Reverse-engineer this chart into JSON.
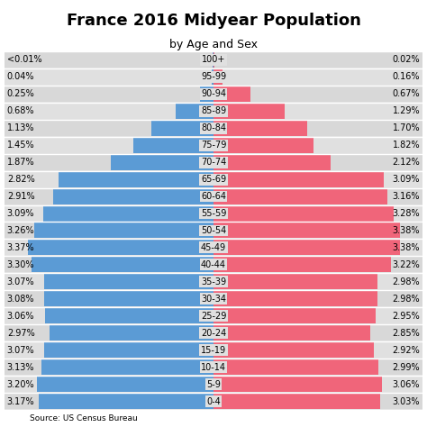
{
  "title": "France 2016 Midyear Population",
  "subtitle": "by Age and Sex",
  "source": "Source: US Census Bureau",
  "age_groups": [
    "0-4",
    "5-9",
    "10-14",
    "15-19",
    "20-24",
    "25-29",
    "30-34",
    "35-39",
    "40-44",
    "45-49",
    "50-54",
    "55-59",
    "60-64",
    "65-69",
    "70-74",
    "75-79",
    "80-84",
    "85-89",
    "90-94",
    "95-99",
    "100+"
  ],
  "male_pct": [
    3.17,
    3.2,
    3.13,
    3.07,
    2.97,
    3.06,
    3.08,
    3.07,
    3.3,
    3.37,
    3.26,
    3.09,
    2.91,
    2.82,
    1.87,
    1.45,
    1.13,
    0.68,
    0.25,
    0.04,
    0.01
  ],
  "female_pct": [
    3.03,
    3.06,
    2.99,
    2.92,
    2.85,
    2.95,
    2.98,
    2.98,
    3.22,
    3.38,
    3.38,
    3.28,
    3.16,
    3.09,
    2.12,
    1.82,
    1.7,
    1.29,
    0.67,
    0.16,
    0.02
  ],
  "male_labels": [
    "3.17%",
    "3.20%",
    "3.13%",
    "3.07%",
    "2.97%",
    "3.06%",
    "3.08%",
    "3.07%",
    "3.30%",
    "3.37%",
    "3.26%",
    "3.09%",
    "2.91%",
    "2.82%",
    "1.87%",
    "1.45%",
    "1.13%",
    "0.68%",
    "0.25%",
    "0.04%",
    "<0.01%"
  ],
  "female_labels": [
    "3.03%",
    "3.06%",
    "2.99%",
    "2.92%",
    "2.85%",
    "2.95%",
    "2.98%",
    "2.98%",
    "3.22%",
    "3.38%",
    "3.38%",
    "3.28%",
    "3.16%",
    "3.09%",
    "2.12%",
    "1.82%",
    "1.70%",
    "1.29%",
    "0.67%",
    "0.16%",
    "0.02%"
  ],
  "male_color": "#5b9bd5",
  "female_color": "#f0657a",
  "bg_color": "#e0e0e0",
  "title_bg": "#ffffff",
  "xlim": 3.8,
  "title_fontsize": 13,
  "subtitle_fontsize": 9,
  "label_fontsize": 7,
  "age_label_fontsize": 7,
  "source_fontsize": 6.5
}
